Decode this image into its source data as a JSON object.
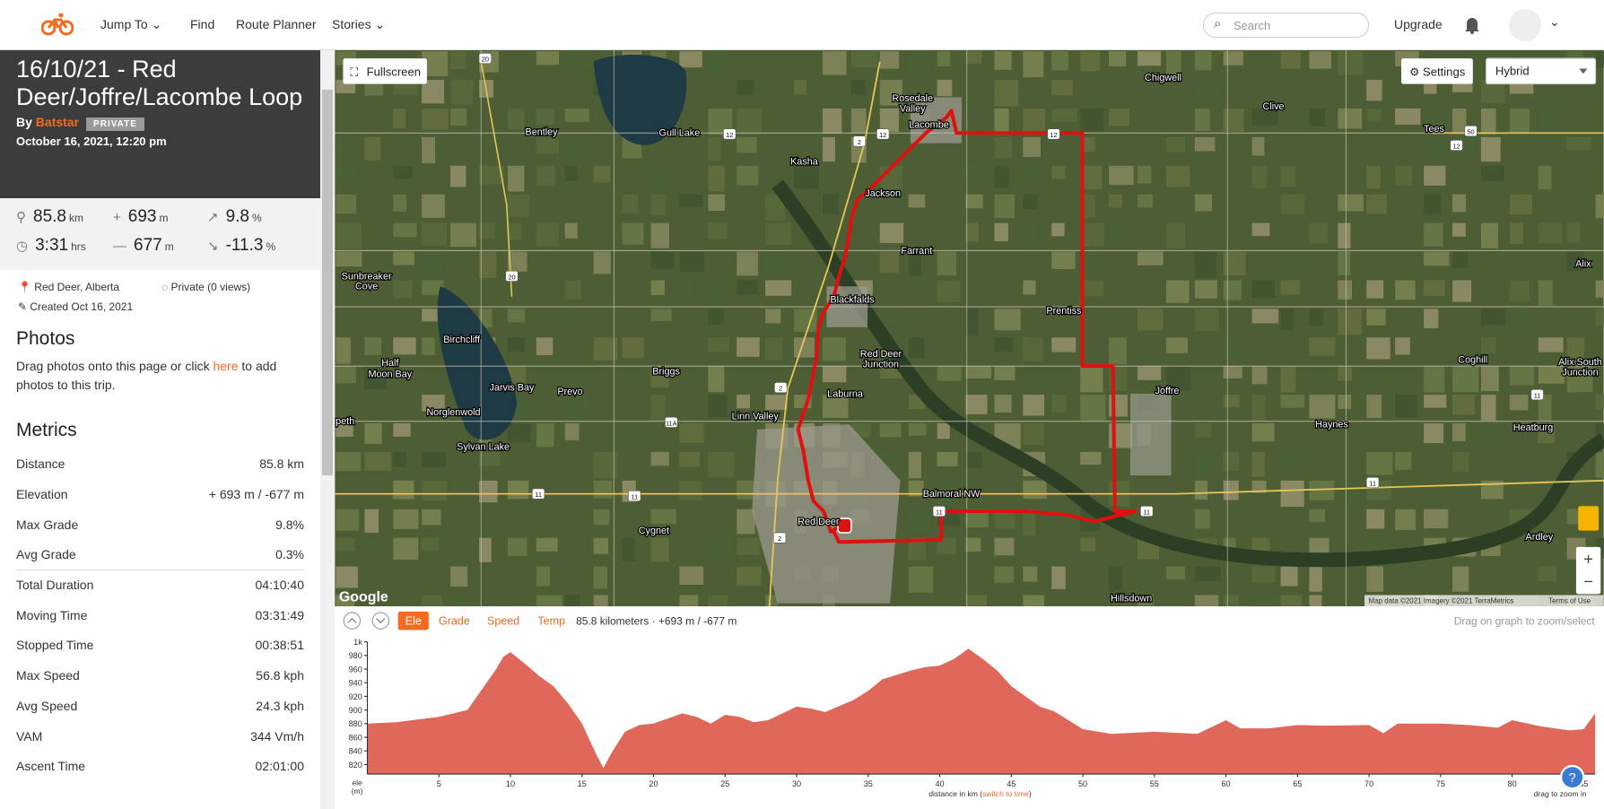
{
  "nav": {
    "items": [
      "Jump To",
      "Find",
      "Route Planner",
      "Stories"
    ],
    "search_placeholder": "Search",
    "upgrade": "Upgrade"
  },
  "trip": {
    "title": "16/10/21 - Red Deer/Joffre/Lacombe Loop",
    "by": "By",
    "author": "Batstar",
    "badge": "PRIVATE",
    "date": "October 16, 2021, 12:20 pm",
    "stats": [
      {
        "value": "85.8",
        "unit": "km"
      },
      {
        "value": "693",
        "unit": "m"
      },
      {
        "value": "9.8",
        "unit": "%"
      },
      {
        "value": "3:31",
        "unit": "hrs"
      },
      {
        "value": "677",
        "unit": "m"
      },
      {
        "value": "-11.3",
        "unit": "%"
      }
    ],
    "location": "Red Deer, Alberta",
    "privacy": "Private (0 views)",
    "created": "Created Oct 16, 2021"
  },
  "photos": {
    "heading": "Photos",
    "text_before": "Drag photos onto this page or click ",
    "link": "here",
    "text_after": " to add photos to this trip."
  },
  "metrics": {
    "heading": "Metrics",
    "rows": [
      [
        "Distance",
        "85.8 km"
      ],
      [
        "Elevation",
        "+ 693 m / -677 m"
      ],
      [
        "Max Grade",
        "9.8%"
      ],
      [
        "Avg Grade",
        "0.3%"
      ],
      [
        "Total Duration",
        "04:10:40"
      ],
      [
        "Moving Time",
        "03:31:49"
      ],
      [
        "Stopped Time",
        "00:38:51"
      ],
      [
        "Max Speed",
        "56.8 kph"
      ],
      [
        "Avg Speed",
        "24.3 kph"
      ],
      [
        "VAM",
        "344 Vm/h"
      ],
      [
        "Ascent Time",
        "02:01:00"
      ]
    ]
  },
  "map": {
    "fullscreen": "Fullscreen",
    "settings": "Settings",
    "map_type": "Hybrid",
    "logo": "Google",
    "attribution": "Map data ©2021 Imagery ©2021 TerraMetrics",
    "terms": "Terms of Use",
    "places": [
      "Chigwell",
      "Clive",
      "Tees",
      "Rosedale",
      "Valley",
      "Lacombe",
      "Bentley",
      "Gull Lake",
      "Kasha",
      "Jackson",
      "Farrant",
      "Alix",
      "Sunbreaker",
      "Cove",
      "Prentiss",
      "Blackfalds",
      "Birchcliff",
      "Red Deer",
      "Junction",
      "Coghill",
      "Alix South",
      "Junction",
      "Half",
      "Moon Bay",
      "Jarvis Bay",
      "Prevo",
      "Briggs",
      "Laburna",
      "Joffre",
      "Norglenwold",
      "Linn Valley",
      "Haynes",
      "Heatburg",
      "Sylvan Lake",
      "Balmoral NW",
      "Cygnet",
      "Red Deer",
      "Ardley",
      "Hillsdown",
      "peth"
    ],
    "shields": [
      "20",
      "12",
      "12",
      "2",
      "12",
      "50",
      "12",
      "20",
      "2",
      "11A",
      "11",
      "11",
      "11",
      "11",
      "2",
      "11",
      "11"
    ]
  },
  "profile": {
    "tabs": [
      "Ele",
      "Grade",
      "Speed",
      "Temp"
    ],
    "summary": "85.8 kilometers · +693 m / -677 m",
    "hint": "Drag on graph to zoom/select"
  },
  "chart_data": {
    "type": "area",
    "color": "#e0685a",
    "x": [
      0,
      2,
      5,
      7,
      9,
      9.5,
      10,
      11,
      12,
      13,
      14,
      15,
      16,
      16.5,
      17,
      18,
      19,
      20,
      22,
      23,
      24,
      25,
      26,
      27,
      28,
      30,
      31,
      32,
      34,
      35,
      36,
      38,
      39,
      40,
      41,
      42,
      43,
      44,
      45,
      46,
      47,
      48,
      50,
      52,
      55,
      58,
      60,
      61,
      63,
      65,
      67,
      70,
      71,
      72,
      75,
      77,
      79,
      80,
      82,
      84,
      85,
      85.8
    ],
    "values": [
      880,
      882,
      890,
      900,
      960,
      978,
      985,
      968,
      950,
      935,
      910,
      880,
      835,
      815,
      835,
      868,
      878,
      880,
      895,
      890,
      880,
      893,
      890,
      882,
      885,
      905,
      902,
      897,
      915,
      928,
      945,
      958,
      963,
      965,
      975,
      990,
      975,
      958,
      935,
      920,
      905,
      898,
      872,
      865,
      868,
      865,
      885,
      873,
      873,
      878,
      877,
      878,
      866,
      880,
      880,
      878,
      874,
      885,
      876,
      870,
      872,
      895
    ],
    "xlim": [
      0,
      85.8
    ],
    "ylim": [
      806,
      1000
    ],
    "xticks": [
      5,
      10,
      15,
      20,
      25,
      30,
      35,
      40,
      45,
      50,
      55,
      60,
      65,
      70,
      75,
      80,
      85
    ],
    "yticks": [
      820,
      840,
      860,
      880,
      900,
      920,
      940,
      960,
      980,
      {
        "value": 1000,
        "label": "1k"
      }
    ],
    "ylabel": [
      "ele",
      "(m)"
    ],
    "xlabel": [
      "distance in km (",
      "switch to time",
      ")"
    ],
    "zoom_hint": "drag to zoom in"
  }
}
